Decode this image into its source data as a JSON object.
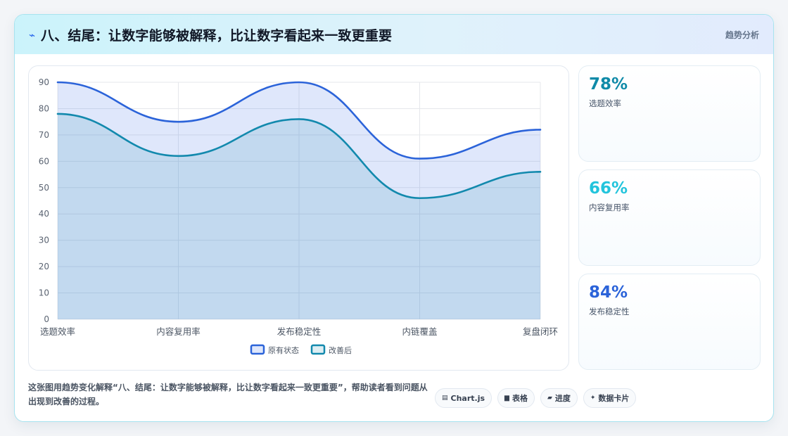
{
  "header": {
    "title": "八、结尾：让数字能够被解释，比让数字看起来一致更重要",
    "tag": "趋势分析"
  },
  "chart_data": {
    "type": "area",
    "categories": [
      "选题效率",
      "内容复用率",
      "发布稳定性",
      "内链覆盖",
      "复盘闭环"
    ],
    "series": [
      {
        "name": "原有状态",
        "values": [
          90,
          75,
          90,
          61,
          72
        ],
        "color": "#2b63d9"
      },
      {
        "name": "改善后",
        "values": [
          78,
          62,
          76,
          46,
          56
        ],
        "color": "#1289ad"
      }
    ],
    "ylim": [
      0,
      90
    ],
    "yticks": [
      0,
      10,
      20,
      30,
      40,
      50,
      60,
      70,
      80,
      90
    ],
    "grid": true,
    "legend": "bottom"
  },
  "kpis": [
    {
      "value": "78%",
      "label": "选题效率",
      "color": "#0f8aa8"
    },
    {
      "value": "66%",
      "label": "内容复用率",
      "color": "#22c4dc"
    },
    {
      "value": "84%",
      "label": "发布稳定性",
      "color": "#2b63d9"
    }
  ],
  "footer": {
    "text": "这张图用趋势变化解释“八、结尾：让数字能够被解释，比让数字看起来一致更重要”，帮助读者看到问题从出现到改善的过程。",
    "pills": [
      {
        "icon": "chart-icon",
        "label": "Chart.js"
      },
      {
        "icon": "table-icon",
        "label": "表格"
      },
      {
        "icon": "progress-icon",
        "label": "进度"
      },
      {
        "icon": "card-icon",
        "label": "数据卡片"
      }
    ]
  }
}
